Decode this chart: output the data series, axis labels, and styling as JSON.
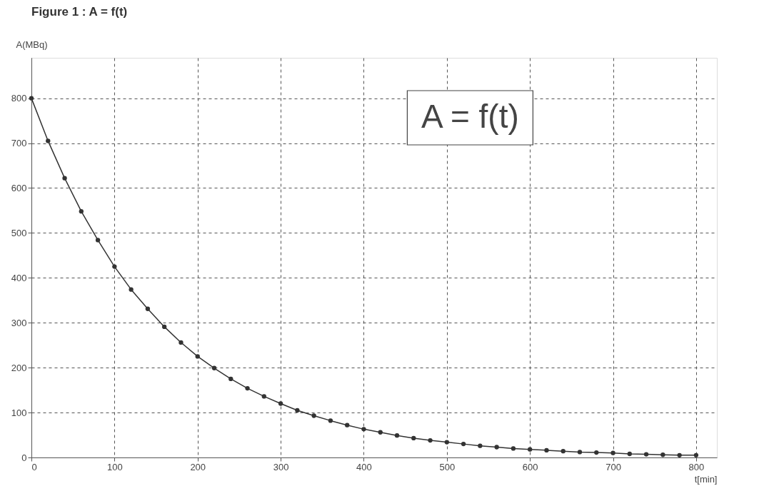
{
  "chart_data": {
    "type": "line",
    "title": "Figure 1 : A = f(t)",
    "xlabel": "t[min]",
    "ylabel": "A(MBq)",
    "annotations": [
      "A = f(t)"
    ],
    "x": [
      0,
      20,
      40,
      60,
      80,
      100,
      120,
      140,
      160,
      180,
      200,
      220,
      240,
      260,
      280,
      300,
      320,
      340,
      360,
      380,
      400,
      420,
      440,
      460,
      480,
      500,
      520,
      540,
      560,
      580,
      600,
      620,
      640,
      660,
      680,
      700,
      720,
      740,
      760,
      780,
      800
    ],
    "series": [
      {
        "color": "#333333",
        "values": [
          800,
          705,
          622,
          548,
          484,
          425,
          374,
          331,
          291,
          256,
          225,
          199,
          175,
          154,
          136,
          120,
          105,
          93,
          82,
          72,
          63,
          56,
          49,
          43,
          38,
          34,
          30,
          26,
          23,
          20,
          18,
          16,
          14,
          12,
          11,
          10,
          8,
          7,
          6,
          5,
          5
        ]
      }
    ],
    "xlim": [
      0,
      825
    ],
    "ylim": [
      0,
      890
    ],
    "xticks": [
      0,
      100,
      200,
      300,
      400,
      500,
      600,
      700,
      800
    ],
    "yticks": [
      0,
      100,
      200,
      300,
      400,
      500,
      600,
      700,
      800
    ],
    "grid": true,
    "marker": "circle",
    "line_style": "solid"
  }
}
